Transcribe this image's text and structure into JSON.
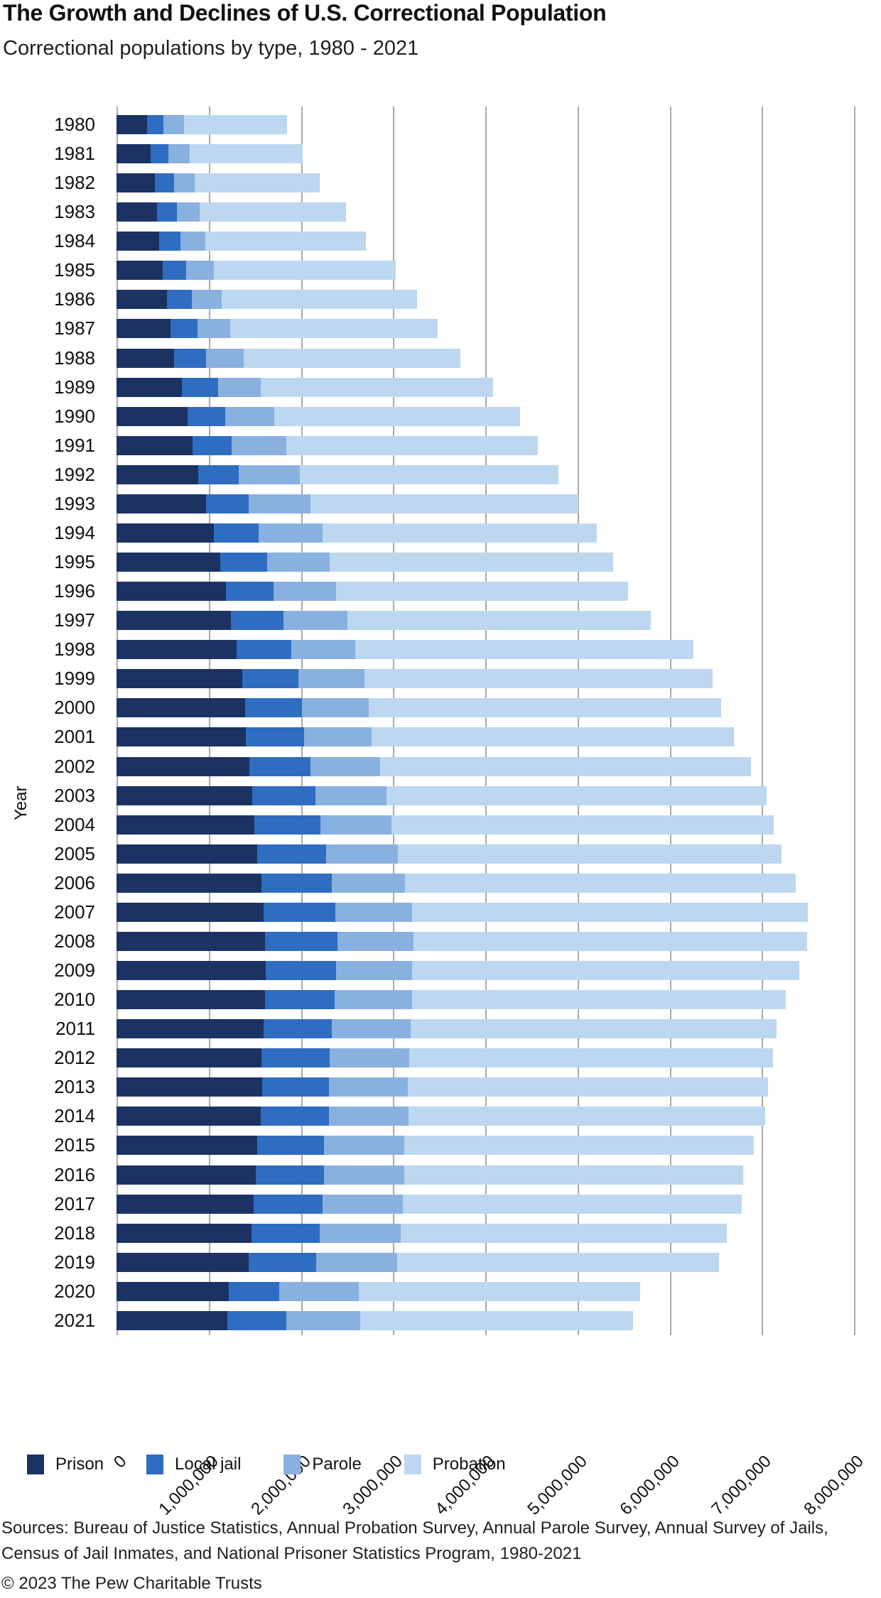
{
  "header": {
    "title": "The Growth and Declines of U.S. Correctional Population",
    "subtitle": "Correctional populations by type, 1980 - 2021"
  },
  "footer": {
    "sources": "Sources: Bureau of Justice Statistics, Annual Probation Survey, Annual Parole Survey, Annual Survey of Jails, Census of Jail Inmates, and National Prisoner Statistics Program, 1980-2021",
    "copyright": "© 2023 The Pew Charitable Trusts"
  },
  "colors": {
    "prison": "#1B3263",
    "local_jail": "#2E6DC1",
    "parole": "#89B1E0",
    "probation": "#BDD7F1",
    "gridline": "#A9A9A9",
    "text": "#111111"
  },
  "legend": [
    {
      "label": "Prison",
      "color": "#1B3263"
    },
    {
      "label": "Local jail",
      "color": "#2E6DC1"
    },
    {
      "label": "Parole",
      "color": "#89B1E0"
    },
    {
      "label": "Probation",
      "color": "#BDD7F1"
    }
  ],
  "chart_data": {
    "type": "bar",
    "orientation": "horizontal",
    "stacked": true,
    "title": "The Growth and Declines of U.S. Correctional Population",
    "subtitle": "Correctional populations by type, 1980 - 2021",
    "xlabel": "",
    "ylabel": "Year",
    "grid": "vertical",
    "legend_position": "bottom",
    "x_axis": {
      "min": 0,
      "max": 8000000,
      "tick_interval": 1000000,
      "tick_labels": [
        "0",
        "1,000,000",
        "2,000,000",
        "3,000,000",
        "4,000,000",
        "5,000,000",
        "6,000,000",
        "7,000,000",
        "8,000,000"
      ]
    },
    "categories": [
      "1980",
      "1981",
      "1982",
      "1983",
      "1984",
      "1985",
      "1986",
      "1987",
      "1988",
      "1989",
      "1990",
      "1991",
      "1992",
      "1993",
      "1994",
      "1995",
      "1996",
      "1997",
      "1998",
      "1999",
      "2000",
      "2001",
      "2002",
      "2003",
      "2004",
      "2005",
      "2006",
      "2007",
      "2008",
      "2009",
      "2010",
      "2011",
      "2012",
      "2013",
      "2014",
      "2015",
      "2016",
      "2017",
      "2018",
      "2019",
      "2020",
      "2021"
    ],
    "series": [
      {
        "name": "Prison",
        "color": "#1B3263",
        "values": [
          329800,
          369900,
          413800,
          436900,
          462000,
          502500,
          545000,
          585100,
          627600,
          712400,
          773900,
          825600,
          882500,
          970400,
          1054800,
          1125900,
          1183400,
          1241000,
          1302000,
          1366700,
          1391300,
          1404000,
          1440100,
          1468600,
          1497100,
          1525900,
          1568700,
          1596800,
          1608300,
          1615500,
          1613800,
          1598800,
          1570400,
          1577000,
          1562300,
          1526800,
          1508100,
          1489400,
          1465200,
          1430800,
          1215800,
          1204300
        ]
      },
      {
        "name": "Local jail",
        "color": "#2E6DC1",
        "values": [
          182300,
          195100,
          207900,
          221800,
          233000,
          255000,
          272700,
          294100,
          341900,
          393300,
          405300,
          426500,
          444600,
          459800,
          486500,
          507000,
          518500,
          567100,
          592500,
          605900,
          621100,
          631200,
          665500,
          691300,
          714000,
          747500,
          765800,
          780200,
          785500,
          767400,
          748700,
          735600,
          744500,
          731200,
          744600,
          727400,
          740700,
          745200,
          738400,
          734500,
          549100,
          636300
        ]
      },
      {
        "name": "Parole",
        "color": "#89B1E0",
        "values": [
          220400,
          225500,
          224600,
          246400,
          267000,
          300200,
          325600,
          355500,
          408000,
          456800,
          531400,
          590400,
          658600,
          676100,
          690400,
          679400,
          679700,
          694800,
          696400,
          714500,
          723900,
          732300,
          750900,
          769900,
          771900,
          780600,
          798200,
          826100,
          828200,
          824100,
          840700,
          855500,
          858400,
          849500,
          857700,
          870500,
          874800,
          875000,
          878000,
          878900,
          862100,
          803200
        ]
      },
      {
        "name": "Probation",
        "color": "#BDD7F1",
        "values": [
          1118100,
          1225900,
          1357300,
          1582900,
          1740900,
          1968700,
          2114600,
          2247200,
          2356500,
          2522100,
          2670200,
          2728500,
          2811600,
          2903100,
          2981000,
          3077900,
          3164900,
          3296500,
          3670400,
          3779900,
          3826200,
          3931700,
          4024100,
          4120000,
          4143800,
          4162500,
          4236800,
          4293200,
          4271200,
          4199800,
          4055900,
          3973800,
          3944900,
          3912900,
          3868400,
          3789800,
          3673100,
          3674100,
          3540000,
          3492900,
          3053700,
          2963000
        ]
      }
    ]
  }
}
